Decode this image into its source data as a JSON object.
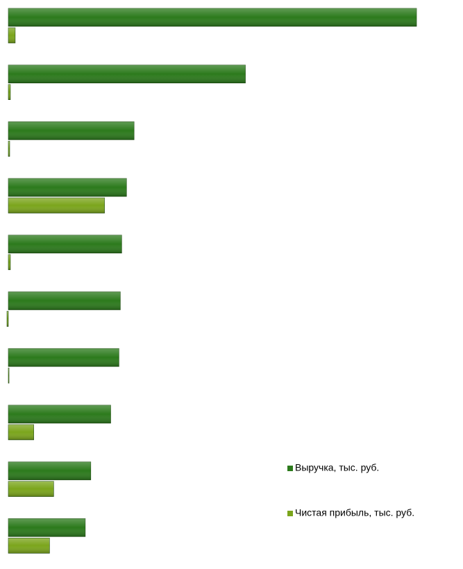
{
  "chart_data": {
    "type": "hbar",
    "categories": [
      null,
      null,
      null,
      null,
      null,
      null,
      null,
      null,
      null,
      null
    ],
    "series": [
      {
        "name": "Выручка, тыс. руб.",
        "color": "#2c7a1c",
        "values": [
          594,
          345,
          183,
          172,
          165,
          163,
          161,
          149,
          120,
          112
        ]
      },
      {
        "name": "Чистая прибыль, тыс. руб.",
        "color": "#7ba51c",
        "values": [
          10,
          3,
          2,
          140,
          3,
          -2,
          1,
          37,
          66,
          60
        ]
      }
    ],
    "xlim": [
      0,
      600
    ]
  }
}
